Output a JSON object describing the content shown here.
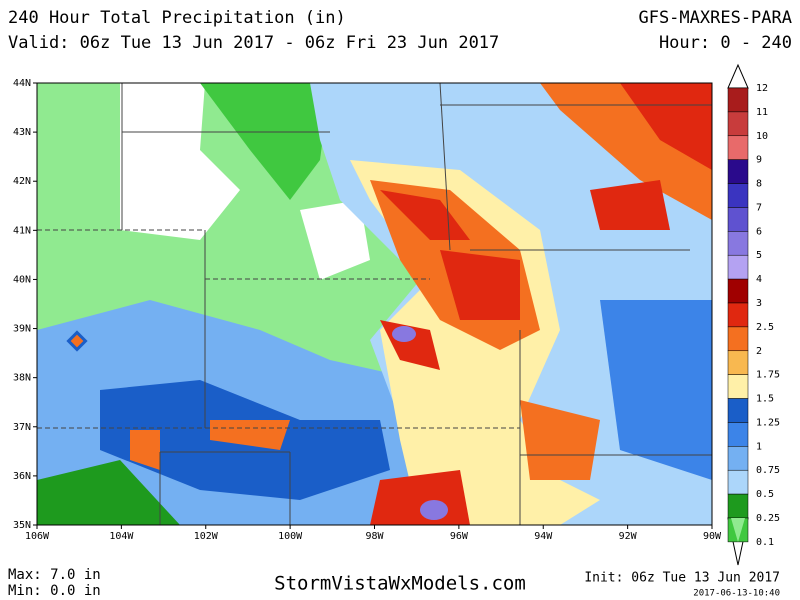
{
  "header": {
    "title": "240 Hour Total Precipitation (in)",
    "valid": "Valid: 06z Tue 13 Jun 2017 - 06z Fri 23 Jun 2017",
    "model": "GFS-MAXRES-PARA",
    "hours": "Hour: 0 - 240"
  },
  "map": {
    "lat_ticks": [
      "44N",
      "43N",
      "42N",
      "41N",
      "40N",
      "39N",
      "38N",
      "37N",
      "36N",
      "35N"
    ],
    "lon_ticks": [
      "106W",
      "104W",
      "102W",
      "100W",
      "98W",
      "96W",
      "94W",
      "92W",
      "90W"
    ]
  },
  "colorbar": {
    "levels": [
      {
        "label": 12,
        "color": "#a81c1c"
      },
      {
        "label": 11,
        "color": "#c83c3c"
      },
      {
        "label": 10,
        "color": "#e86a6a"
      },
      {
        "label": 9,
        "color": "#2a0a8c"
      },
      {
        "label": 8,
        "color": "#3a34c0"
      },
      {
        "label": 7,
        "color": "#5f52d0"
      },
      {
        "label": 6,
        "color": "#8878e0"
      },
      {
        "label": 5,
        "color": "#b4a2f2"
      },
      {
        "label": 4,
        "color": "#a00000"
      },
      {
        "label": 3,
        "color": "#e02810"
      },
      {
        "label": 2.5,
        "color": "#f47020"
      },
      {
        "label": 2,
        "color": "#f8b850"
      },
      {
        "label": 1.75,
        "color": "#fff0a8"
      },
      {
        "label": 1.5,
        "color": "#1a5ec8"
      },
      {
        "label": 1.25,
        "color": "#3c84e8"
      },
      {
        "label": 1,
        "color": "#74b0f2"
      },
      {
        "label": 0.75,
        "color": "#acd6fa"
      },
      {
        "label": 0.5,
        "color": "#1e9a1e"
      },
      {
        "label": 0.25,
        "color": "#40c840"
      },
      {
        "label": 0.1,
        "color": "#90ea90"
      }
    ]
  },
  "footer": {
    "max": "Max: 7.0 in",
    "min": "Min: 0.0 in",
    "site": "StormVistaWxModels.com",
    "init": "Init: 06z Tue 13 Jun 2017",
    "stamp": "2017-06-13-10:40"
  }
}
